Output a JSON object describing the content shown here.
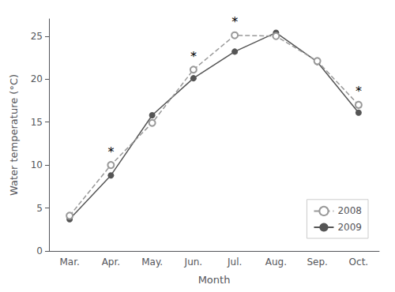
{
  "chart_data": {
    "type": "line",
    "categories": [
      "Mar.",
      "Apr.",
      "May.",
      "Jun.",
      "Jul.",
      "Aug.",
      "Sep.",
      "Oct."
    ],
    "series": [
      {
        "name": "2008",
        "color": "#999999",
        "line_style": "dashed",
        "marker": "open_circle",
        "values": [
          4.1,
          10.0,
          14.9,
          21.1,
          25.1,
          25.0,
          22.1,
          17.0
        ]
      },
      {
        "name": "2009",
        "color": "#555555",
        "line_style": "solid",
        "marker": "circle",
        "values": [
          3.7,
          8.8,
          15.8,
          20.1,
          23.2,
          25.4,
          22.0,
          16.1
        ]
      }
    ],
    "xlabel": "Month",
    "ylabel": "Water temperature (°C)",
    "ylim": [
      0,
      27
    ],
    "yticks": [
      0,
      5,
      10,
      15,
      20,
      25
    ],
    "grid": false,
    "legend": "lower right",
    "annotations": [
      {
        "category": "Apr.",
        "series": "2008",
        "text": "*"
      },
      {
        "category": "Jun.",
        "series": "2008",
        "text": "*"
      },
      {
        "category": "Jul.",
        "series": "2008",
        "text": "*"
      },
      {
        "category": "Oct.",
        "series": "2008",
        "text": "*"
      }
    ]
  }
}
